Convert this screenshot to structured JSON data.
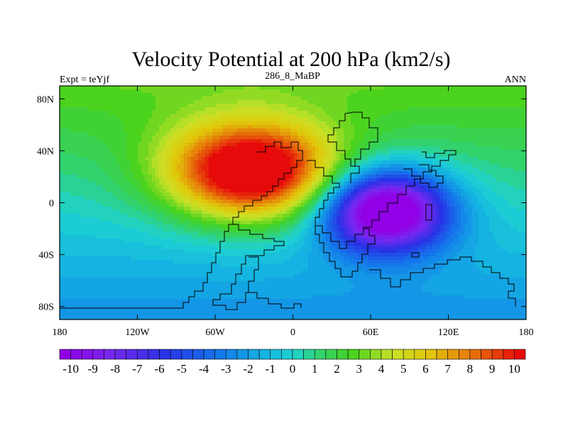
{
  "chart_data": {
    "type": "heatmap",
    "title": "Velocity Potential at 200 hPa (km2/s)",
    "subtitle_left": "Expt = teYjf",
    "subtitle_center": "286_8_MaBP",
    "subtitle_right": "ANN",
    "x_ticks": [
      {
        "value": -180,
        "label": "180"
      },
      {
        "value": -120,
        "label": "120W"
      },
      {
        "value": -60,
        "label": "60W"
      },
      {
        "value": 0,
        "label": "0"
      },
      {
        "value": 60,
        "label": "60E"
      },
      {
        "value": 120,
        "label": "120E"
      },
      {
        "value": 180,
        "label": "180"
      }
    ],
    "y_ticks": [
      {
        "value": 80,
        "label": "80N"
      },
      {
        "value": 40,
        "label": "40N"
      },
      {
        "value": 0,
        "label": "0"
      },
      {
        "value": -40,
        "label": "40S"
      },
      {
        "value": -80,
        "label": "80S"
      }
    ],
    "xlim": [
      -180,
      180
    ],
    "ylim": [
      -90,
      90
    ],
    "colorbar": {
      "min": -10.5,
      "max": 10.5,
      "step": 0.5,
      "labels": [
        "-10",
        "-9",
        "-8",
        "-7",
        "-6",
        "-5",
        "-4",
        "-3",
        "-2",
        "-1",
        "0",
        "1",
        "2",
        "3",
        "4",
        "5",
        "6",
        "7",
        "8",
        "9",
        "10"
      ]
    },
    "field_centers": [
      {
        "lon": -32,
        "lat": 24,
        "amp": 12.0,
        "sx": 45,
        "sy": 26,
        "label": "maximum"
      },
      {
        "lon": 72,
        "lat": -6,
        "amp": -13.0,
        "sx": 34,
        "sy": 22,
        "label": "minimum"
      }
    ],
    "background_gradient": {
      "north_pole": 3.0,
      "south_pole": -2.5
    }
  }
}
